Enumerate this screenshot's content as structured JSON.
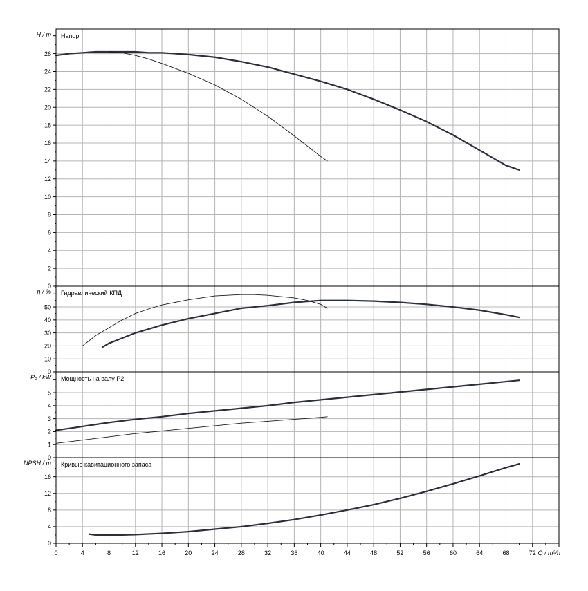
{
  "chart_data": {
    "type": "line",
    "x_axis": {
      "label": "Q / m³/h",
      "range": [
        0,
        76
      ],
      "ticks": [
        "0",
        "4",
        "8",
        "12",
        "16",
        "20",
        "24",
        "28",
        "32",
        "36",
        "40",
        "44",
        "48",
        "52",
        "56",
        "60",
        "64",
        "68",
        "72"
      ],
      "minor_step": 2
    },
    "grid": true,
    "panels": [
      {
        "id": "head",
        "title": "Напор",
        "y_label": "H / m",
        "y_range": [
          0,
          28.75
        ],
        "y_ticks": [
          0,
          2,
          4,
          6,
          8,
          10,
          12,
          14,
          16,
          18,
          20,
          22,
          24,
          26
        ],
        "series": [
          {
            "stroke": "thick",
            "points": [
              [
                0,
                25.8
              ],
              [
                2,
                26.0
              ],
              [
                4,
                26.1
              ],
              [
                6,
                26.2
              ],
              [
                8,
                26.2
              ],
              [
                10,
                26.2
              ],
              [
                12,
                26.2
              ],
              [
                14,
                26.1
              ],
              [
                16,
                26.1
              ],
              [
                18,
                26.0
              ],
              [
                20,
                25.9
              ],
              [
                24,
                25.6
              ],
              [
                28,
                25.1
              ],
              [
                32,
                24.5
              ],
              [
                36,
                23.7
              ],
              [
                40,
                22.9
              ],
              [
                44,
                22.0
              ],
              [
                48,
                20.9
              ],
              [
                52,
                19.7
              ],
              [
                56,
                18.4
              ],
              [
                60,
                16.9
              ],
              [
                64,
                15.2
              ],
              [
                68,
                13.5
              ],
              [
                70,
                13.0
              ]
            ]
          },
          {
            "stroke": "thin",
            "points": [
              [
                8,
                26.2
              ],
              [
                10,
                26.1
              ],
              [
                12,
                25.8
              ],
              [
                14,
                25.4
              ],
              [
                16,
                24.9
              ],
              [
                20,
                23.8
              ],
              [
                24,
                22.5
              ],
              [
                28,
                20.9
              ],
              [
                32,
                19.0
              ],
              [
                36,
                16.8
              ],
              [
                40,
                14.5
              ],
              [
                41,
                14.0
              ]
            ]
          }
        ]
      },
      {
        "id": "efficiency",
        "title": "Гидравлический КПД",
        "y_label": "η / %",
        "y_range": [
          0,
          66
        ],
        "y_ticks": [
          0,
          10,
          20,
          30,
          40,
          50
        ],
        "series": [
          {
            "stroke": "thick",
            "points": [
              [
                7,
                19
              ],
              [
                8,
                22
              ],
              [
                10,
                26
              ],
              [
                12,
                30
              ],
              [
                16,
                36
              ],
              [
                20,
                41
              ],
              [
                24,
                45
              ],
              [
                28,
                49
              ],
              [
                32,
                51
              ],
              [
                36,
                53.5
              ],
              [
                40,
                55
              ],
              [
                44,
                55
              ],
              [
                48,
                54.5
              ],
              [
                52,
                53.5
              ],
              [
                56,
                52
              ],
              [
                60,
                50
              ],
              [
                64,
                47.5
              ],
              [
                68,
                44
              ],
              [
                70,
                42
              ]
            ]
          },
          {
            "stroke": "thin",
            "points": [
              [
                4,
                20
              ],
              [
                6,
                28
              ],
              [
                8,
                34
              ],
              [
                10,
                40
              ],
              [
                12,
                45
              ],
              [
                14,
                48.5
              ],
              [
                16,
                51.5
              ],
              [
                20,
                55.5
              ],
              [
                24,
                58.5
              ],
              [
                28,
                59.5
              ],
              [
                30,
                59.5
              ],
              [
                32,
                59
              ],
              [
                36,
                57
              ],
              [
                38,
                55
              ],
              [
                40,
                52
              ],
              [
                41,
                49
              ]
            ]
          }
        ]
      },
      {
        "id": "power",
        "title": "Мощность на валу P2",
        "y_label": "P₂ / kW",
        "y_range": [
          0,
          6.6
        ],
        "y_ticks": [
          0,
          1,
          2,
          3,
          4,
          5
        ],
        "series": [
          {
            "stroke": "thick",
            "points": [
              [
                0,
                2.1
              ],
              [
                4,
                2.4
              ],
              [
                8,
                2.7
              ],
              [
                12,
                2.95
              ],
              [
                16,
                3.15
              ],
              [
                20,
                3.4
              ],
              [
                24,
                3.6
              ],
              [
                28,
                3.8
              ],
              [
                32,
                4.0
              ],
              [
                36,
                4.25
              ],
              [
                40,
                4.45
              ],
              [
                44,
                4.65
              ],
              [
                48,
                4.85
              ],
              [
                52,
                5.05
              ],
              [
                56,
                5.25
              ],
              [
                60,
                5.45
              ],
              [
                64,
                5.65
              ],
              [
                68,
                5.85
              ],
              [
                70,
                5.95
              ]
            ]
          },
          {
            "stroke": "thin",
            "points": [
              [
                0,
                1.1
              ],
              [
                4,
                1.35
              ],
              [
                8,
                1.6
              ],
              [
                12,
                1.85
              ],
              [
                16,
                2.05
              ],
              [
                20,
                2.25
              ],
              [
                24,
                2.45
              ],
              [
                28,
                2.65
              ],
              [
                32,
                2.8
              ],
              [
                36,
                2.95
              ],
              [
                40,
                3.1
              ],
              [
                41,
                3.15
              ]
            ]
          }
        ]
      },
      {
        "id": "npsh",
        "title": "Кривые кавитационного запаса",
        "y_label": "NPSH / m",
        "y_range": [
          0,
          20.6
        ],
        "y_ticks": [
          0,
          4,
          8,
          12,
          16
        ],
        "series": [
          {
            "stroke": "thick",
            "points": [
              [
                5,
                2.2
              ],
              [
                6,
                2.0
              ],
              [
                8,
                2.0
              ],
              [
                10,
                2.0
              ],
              [
                12,
                2.1
              ],
              [
                16,
                2.4
              ],
              [
                20,
                2.8
              ],
              [
                24,
                3.4
              ],
              [
                28,
                4.0
              ],
              [
                32,
                4.8
              ],
              [
                36,
                5.7
              ],
              [
                40,
                6.8
              ],
              [
                44,
                8.0
              ],
              [
                48,
                9.3
              ],
              [
                52,
                10.8
              ],
              [
                56,
                12.5
              ],
              [
                60,
                14.3
              ],
              [
                64,
                16.2
              ],
              [
                68,
                18.2
              ],
              [
                70,
                19.1
              ]
            ]
          }
        ]
      }
    ]
  }
}
